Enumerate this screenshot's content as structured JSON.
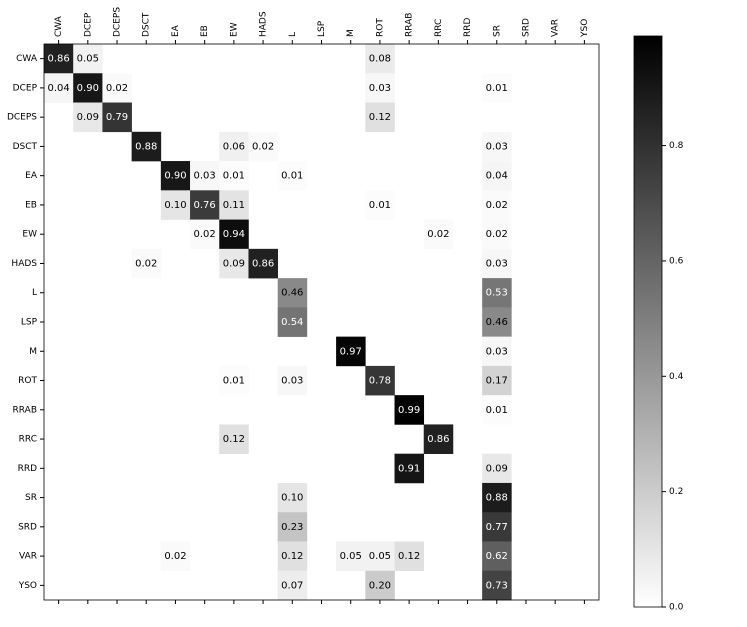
{
  "chart_data": {
    "type": "heatmap",
    "categories": [
      "CWA",
      "DCEP",
      "DCEPS",
      "DSCT",
      "EA",
      "EB",
      "EW",
      "HADS",
      "L",
      "LSP",
      "M",
      "ROT",
      "RRAB",
      "RRC",
      "RRD",
      "SR",
      "SRD",
      "VAR",
      "YSO"
    ],
    "z": [
      [
        0.86,
        0.05,
        null,
        null,
        null,
        null,
        null,
        null,
        null,
        null,
        null,
        0.08,
        null,
        null,
        null,
        null,
        null,
        null,
        null
      ],
      [
        0.04,
        0.9,
        0.02,
        null,
        null,
        null,
        null,
        null,
        null,
        null,
        null,
        0.03,
        null,
        null,
        null,
        0.01,
        null,
        null,
        null
      ],
      [
        null,
        0.09,
        0.79,
        null,
        null,
        null,
        null,
        null,
        null,
        null,
        null,
        0.12,
        null,
        null,
        null,
        null,
        null,
        null,
        null
      ],
      [
        null,
        null,
        null,
        0.88,
        null,
        null,
        0.06,
        0.02,
        null,
        null,
        null,
        null,
        null,
        null,
        null,
        0.03,
        null,
        null,
        null
      ],
      [
        null,
        null,
        null,
        null,
        0.9,
        0.03,
        0.01,
        null,
        0.01,
        null,
        null,
        null,
        null,
        null,
        null,
        0.04,
        null,
        null,
        null
      ],
      [
        null,
        null,
        null,
        null,
        0.1,
        0.76,
        0.11,
        null,
        null,
        null,
        null,
        0.01,
        null,
        null,
        null,
        0.02,
        null,
        null,
        null
      ],
      [
        null,
        null,
        null,
        null,
        null,
        0.02,
        0.94,
        null,
        null,
        null,
        null,
        null,
        null,
        0.02,
        null,
        0.02,
        null,
        null,
        null
      ],
      [
        null,
        null,
        null,
        0.02,
        null,
        null,
        0.09,
        0.86,
        null,
        null,
        null,
        null,
        null,
        null,
        null,
        0.03,
        null,
        null,
        null
      ],
      [
        null,
        null,
        null,
        null,
        null,
        null,
        null,
        null,
        0.46,
        null,
        null,
        null,
        null,
        null,
        null,
        0.53,
        null,
        null,
        null
      ],
      [
        null,
        null,
        null,
        null,
        null,
        null,
        null,
        null,
        0.54,
        null,
        null,
        null,
        null,
        null,
        null,
        0.46,
        null,
        null,
        null
      ],
      [
        null,
        null,
        null,
        null,
        null,
        null,
        null,
        null,
        null,
        null,
        0.97,
        null,
        null,
        null,
        null,
        0.03,
        null,
        null,
        null
      ],
      [
        null,
        null,
        null,
        null,
        null,
        null,
        0.01,
        null,
        0.03,
        null,
        null,
        0.78,
        null,
        null,
        null,
        0.17,
        null,
        null,
        null
      ],
      [
        null,
        null,
        null,
        null,
        null,
        null,
        null,
        null,
        null,
        null,
        null,
        null,
        0.99,
        null,
        null,
        0.01,
        null,
        null,
        null
      ],
      [
        null,
        null,
        null,
        null,
        null,
        null,
        0.12,
        null,
        null,
        null,
        null,
        null,
        null,
        0.86,
        null,
        null,
        null,
        null,
        null
      ],
      [
        null,
        null,
        null,
        null,
        null,
        null,
        null,
        null,
        null,
        null,
        null,
        null,
        0.91,
        null,
        null,
        0.09,
        null,
        null,
        null
      ],
      [
        null,
        null,
        null,
        null,
        null,
        null,
        null,
        null,
        0.1,
        null,
        null,
        null,
        null,
        null,
        null,
        0.88,
        null,
        null,
        null
      ],
      [
        null,
        null,
        null,
        null,
        null,
        null,
        null,
        null,
        0.23,
        null,
        null,
        null,
        null,
        null,
        null,
        0.77,
        null,
        null,
        null
      ],
      [
        null,
        null,
        null,
        null,
        0.02,
        null,
        null,
        null,
        0.12,
        null,
        0.05,
        0.05,
        0.12,
        null,
        null,
        0.62,
        null,
        null,
        null
      ],
      [
        null,
        null,
        null,
        null,
        null,
        null,
        null,
        null,
        0.07,
        null,
        null,
        0.2,
        null,
        null,
        null,
        0.73,
        null,
        null,
        null
      ]
    ],
    "value_labels": [
      [
        "0.86",
        "0.05",
        null,
        null,
        null,
        null,
        null,
        null,
        null,
        null,
        null,
        "0.08",
        null,
        null,
        null,
        null,
        null,
        null,
        null
      ],
      [
        "0.04",
        "0.90",
        "0.02",
        null,
        null,
        null,
        null,
        null,
        null,
        null,
        null,
        "0.03",
        null,
        null,
        null,
        "0.01",
        null,
        null,
        null
      ],
      [
        null,
        "0.09",
        "0.79",
        null,
        null,
        null,
        null,
        null,
        null,
        null,
        null,
        "0.12",
        null,
        null,
        null,
        null,
        null,
        null,
        null
      ],
      [
        null,
        null,
        null,
        "0.88",
        null,
        null,
        "0.06",
        "0.02",
        null,
        null,
        null,
        null,
        null,
        null,
        null,
        "0.03",
        null,
        null,
        null
      ],
      [
        null,
        null,
        null,
        null,
        "0.90",
        "0.03",
        "0.01",
        null,
        "0.01",
        null,
        null,
        null,
        null,
        null,
        null,
        "0.04",
        null,
        null,
        null
      ],
      [
        null,
        null,
        null,
        null,
        "0.10",
        "0.76",
        "0.11",
        null,
        null,
        null,
        null,
        "0.01",
        null,
        null,
        null,
        "0.02",
        null,
        null,
        null
      ],
      [
        null,
        null,
        null,
        null,
        null,
        "0.02",
        "0.94",
        null,
        null,
        null,
        null,
        null,
        null,
        "0.02",
        null,
        "0.02",
        null,
        null,
        null
      ],
      [
        null,
        null,
        null,
        "0.02",
        null,
        null,
        "0.09",
        "0.86",
        null,
        null,
        null,
        null,
        null,
        null,
        null,
        "0.03",
        null,
        null,
        null
      ],
      [
        null,
        null,
        null,
        null,
        null,
        null,
        null,
        null,
        "0.46",
        null,
        null,
        null,
        null,
        null,
        null,
        "0.53",
        null,
        null,
        null
      ],
      [
        null,
        null,
        null,
        null,
        null,
        null,
        null,
        null,
        "0.54",
        null,
        null,
        null,
        null,
        null,
        null,
        "0.46",
        null,
        null,
        null
      ],
      [
        null,
        null,
        null,
        null,
        null,
        null,
        null,
        null,
        null,
        null,
        "0.97",
        null,
        null,
        null,
        null,
        "0.03",
        null,
        null,
        null
      ],
      [
        null,
        null,
        null,
        null,
        null,
        null,
        "0.01",
        null,
        "0.03",
        null,
        null,
        "0.78",
        null,
        null,
        null,
        "0.17",
        null,
        null,
        null
      ],
      [
        null,
        null,
        null,
        null,
        null,
        null,
        null,
        null,
        null,
        null,
        null,
        null,
        "0.99",
        null,
        null,
        "0.01",
        null,
        null,
        null
      ],
      [
        null,
        null,
        null,
        null,
        null,
        null,
        "0.12",
        null,
        null,
        null,
        null,
        null,
        null,
        "0.86",
        null,
        null,
        null,
        null,
        null
      ],
      [
        null,
        null,
        null,
        null,
        null,
        null,
        null,
        null,
        null,
        null,
        null,
        null,
        "0.91",
        null,
        null,
        "0.09",
        null,
        null,
        null
      ],
      [
        null,
        null,
        null,
        null,
        null,
        null,
        null,
        null,
        "0.10",
        null,
        null,
        null,
        null,
        null,
        null,
        "0.88",
        null,
        null,
        null
      ],
      [
        null,
        null,
        null,
        null,
        null,
        null,
        null,
        null,
        "0.23",
        null,
        null,
        null,
        null,
        null,
        null,
        "0.77",
        null,
        null,
        null
      ],
      [
        null,
        null,
        null,
        null,
        "0.02",
        null,
        null,
        null,
        "0.12",
        null,
        "0.05",
        "0.05",
        "0.12",
        null,
        null,
        "0.62",
        null,
        null,
        null
      ],
      [
        null,
        null,
        null,
        null,
        null,
        null,
        null,
        null,
        "0.07",
        null,
        null,
        "0.20",
        null,
        null,
        null,
        "0.73",
        null,
        null,
        null
      ]
    ],
    "clim": [
      0,
      0.99
    ],
    "cticks": [
      {
        "value": 0,
        "label": "0.0"
      },
      {
        "value": 0.2,
        "label": "0.2"
      },
      {
        "value": 0.4,
        "label": "0.4"
      },
      {
        "value": 0.6,
        "label": "0.6"
      },
      {
        "value": 0.8,
        "label": "0.8"
      }
    ]
  }
}
